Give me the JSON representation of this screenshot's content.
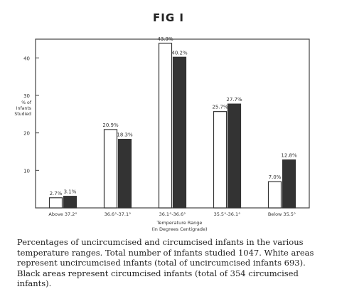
{
  "figure_title": "FIG I",
  "caption": "Percentages of uncircumcised and circumcised infants in the various temperature ranges. Total number of infants studied 1047. White areas represent uncircumcised infants (total of uncircumcised infants 693). Black areas represent circumcised infants (total of 354 circumcised infants).",
  "chart_data": {
    "type": "bar",
    "title": "",
    "ylabel": "% of Infants Studied",
    "xlabel": "Temperature Range (in Degrees Centigrade)",
    "ylim": [
      0,
      45
    ],
    "yticks": [
      10,
      20,
      30,
      40
    ],
    "categories": [
      "Above 37.2°",
      "36.6°-37.1°",
      "36.1°-36.6°",
      "35.5°-36.1°",
      "Below 35.5°"
    ],
    "series": [
      {
        "name": "uncircumcised",
        "color": "#ffffff",
        "values": [
          2.7,
          20.9,
          43.9,
          25.7,
          7.0
        ],
        "labels": [
          "2.7%",
          "20.9%",
          "43.9%",
          "25.7%",
          "7.0%"
        ]
      },
      {
        "name": "circumcised",
        "color": "#333333",
        "values": [
          3.1,
          18.3,
          40.2,
          27.7,
          12.8
        ],
        "labels": [
          "3.1%",
          "18.3%",
          "40.2%",
          "27.7%",
          "12.8%"
        ]
      }
    ],
    "grid": false,
    "legend": "none"
  }
}
